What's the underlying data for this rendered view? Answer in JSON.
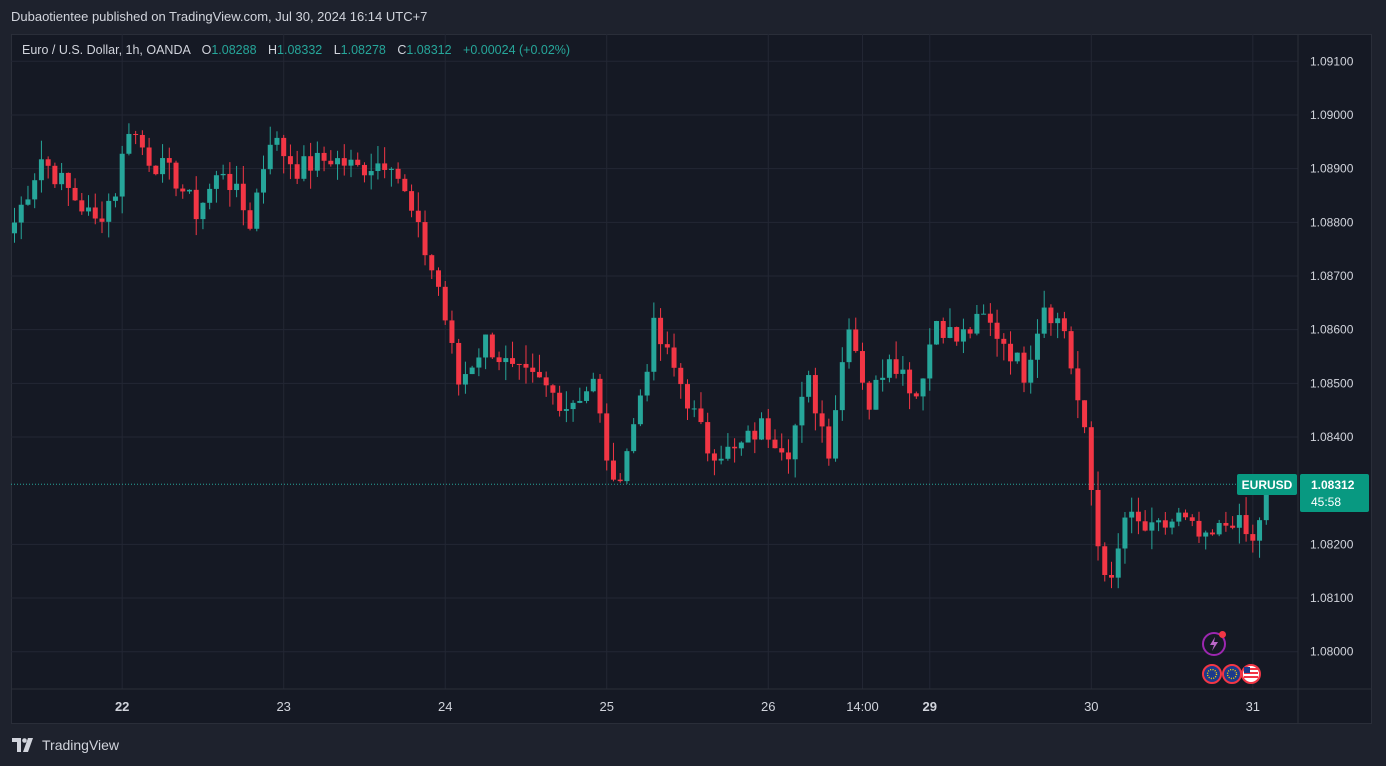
{
  "header": {
    "publisher_line": "Dubaotientee published on TradingView.com, Jul 30, 2024 16:14 UTC+7"
  },
  "legend": {
    "symbol_desc": "Euro / U.S. Dollar, 1h, OANDA",
    "o_label": "O",
    "o_value": "1.08288",
    "h_label": "H",
    "h_value": "1.08332",
    "l_label": "L",
    "l_value": "1.08278",
    "c_label": "C",
    "c_value": "1.08312",
    "change": "+0.00024 (+0.02%)"
  },
  "price_tag": {
    "symbol": "EURUSD",
    "price": "1.08312",
    "countdown": "45:58"
  },
  "brand": {
    "name": "TradingView"
  },
  "colors": {
    "up": "#26a69a",
    "down": "#f23645",
    "tag": "#089981",
    "background": "#151924"
  },
  "icons": [
    "flash-icon",
    "eu-flag-icon",
    "eu-flag-icon",
    "us-flag-icon"
  ],
  "chart_data": {
    "type": "candlestick",
    "symbol": "EURUSD",
    "interval": "1h",
    "ylim": [
      1.0795,
      1.092
    ],
    "y_ticks": [
      "1.09100",
      "1.09000",
      "1.08900",
      "1.08800",
      "1.08700",
      "1.08600",
      "1.08500",
      "1.08400",
      "1.08200",
      "1.08100",
      "1.08000"
    ],
    "x_ticks": [
      {
        "label": "22",
        "index": 16,
        "bold": true
      },
      {
        "label": "23",
        "index": 40,
        "bold": false
      },
      {
        "label": "24",
        "index": 64,
        "bold": false
      },
      {
        "label": "25",
        "index": 88,
        "bold": false
      },
      {
        "label": "26",
        "index": 112,
        "bold": false
      },
      {
        "label": "14:00",
        "index": 126,
        "bold": false
      },
      {
        "label": "29",
        "index": 136,
        "bold": true
      },
      {
        "label": "30",
        "index": 160,
        "bold": false
      },
      {
        "label": "31",
        "index": 184,
        "bold": false
      }
    ],
    "last_price": 1.08312,
    "segments": [
      {
        "t": 0,
        "p": 1.088
      },
      {
        "t": 4,
        "p": 1.0892
      },
      {
        "t": 8,
        "p": 1.0886
      },
      {
        "t": 12,
        "p": 1.088
      },
      {
        "t": 15,
        "p": 1.0886
      },
      {
        "t": 17,
        "p": 1.0898
      },
      {
        "t": 20,
        "p": 1.0892
      },
      {
        "t": 24,
        "p": 1.0888
      },
      {
        "t": 27,
        "p": 1.0882
      },
      {
        "t": 31,
        "p": 1.089
      },
      {
        "t": 35,
        "p": 1.088
      },
      {
        "t": 38,
        "p": 1.0896
      },
      {
        "t": 42,
        "p": 1.089
      },
      {
        "t": 47,
        "p": 1.0892
      },
      {
        "t": 51,
        "p": 1.089
      },
      {
        "t": 56,
        "p": 1.0892
      },
      {
        "t": 60,
        "p": 1.0878
      },
      {
        "t": 63,
        "p": 1.0868
      },
      {
        "t": 66,
        "p": 1.085
      },
      {
        "t": 70,
        "p": 1.0858
      },
      {
        "t": 74,
        "p": 1.0852
      },
      {
        "t": 78,
        "p": 1.085
      },
      {
        "t": 82,
        "p": 1.0846
      },
      {
        "t": 86,
        "p": 1.085
      },
      {
        "t": 89,
        "p": 1.083
      },
      {
        "t": 92,
        "p": 1.0842
      },
      {
        "t": 95,
        "p": 1.086
      },
      {
        "t": 99,
        "p": 1.085
      },
      {
        "t": 103,
        "p": 1.0838
      },
      {
        "t": 107,
        "p": 1.0837
      },
      {
        "t": 111,
        "p": 1.0842
      },
      {
        "t": 115,
        "p": 1.0838
      },
      {
        "t": 118,
        "p": 1.085
      },
      {
        "t": 121,
        "p": 1.0838
      },
      {
        "t": 124,
        "p": 1.0862
      },
      {
        "t": 127,
        "p": 1.0846
      },
      {
        "t": 130,
        "p": 1.0856
      },
      {
        "t": 134,
        "p": 1.0848
      },
      {
        "t": 137,
        "p": 1.0862
      },
      {
        "t": 140,
        "p": 1.0858
      },
      {
        "t": 144,
        "p": 1.0862
      },
      {
        "t": 147,
        "p": 1.0858
      },
      {
        "t": 150,
        "p": 1.0852
      },
      {
        "t": 153,
        "p": 1.0865
      },
      {
        "t": 156,
        "p": 1.086
      },
      {
        "t": 159,
        "p": 1.084
      },
      {
        "t": 161,
        "p": 1.082
      },
      {
        "t": 163,
        "p": 1.0812
      },
      {
        "t": 165,
        "p": 1.0825
      },
      {
        "t": 169,
        "p": 1.0822
      },
      {
        "t": 173,
        "p": 1.0825
      },
      {
        "t": 177,
        "p": 1.082
      },
      {
        "t": 181,
        "p": 1.0825
      },
      {
        "t": 184,
        "p": 1.082
      },
      {
        "t": 186,
        "p": 1.083
      },
      {
        "t": 187,
        "p": 1.08312
      }
    ]
  }
}
